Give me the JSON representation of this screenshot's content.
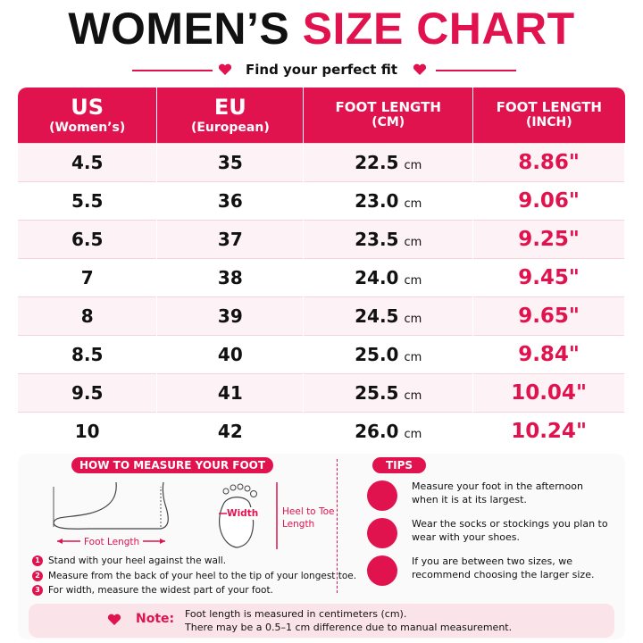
{
  "header": {
    "title_black": "WOMEN’S",
    "title_pink": "SIZE CHART",
    "subtitle": "Find your perfect fit"
  },
  "table": {
    "columns": [
      {
        "title": "US",
        "sub": "(Women’s)"
      },
      {
        "title": "EU",
        "sub": "(European)"
      },
      {
        "title": "FOOT LENGTH",
        "sub": "(CM)"
      },
      {
        "title": "FOOT LENGTH",
        "sub": "(INCH)"
      }
    ],
    "unit": "cm",
    "rows": [
      [
        "4.5",
        "35",
        "22.5",
        "8.86\""
      ],
      [
        "5.5",
        "36",
        "23.0",
        "9.06\""
      ],
      [
        "6.5",
        "37",
        "23.5",
        "9.25\""
      ],
      [
        "7",
        "38",
        "24.0",
        "9.45\""
      ],
      [
        "8",
        "39",
        "24.5",
        "9.65\""
      ],
      [
        "8.5",
        "40",
        "25.0",
        "9.84\""
      ],
      [
        "9.5",
        "41",
        "25.5",
        "10.04\""
      ],
      [
        "10",
        "42",
        "26.0",
        "10.24\""
      ]
    ]
  },
  "measure": {
    "title": "HOW TO MEASURE YOUR FOOT",
    "foot_length": "Foot Length",
    "width": "Width",
    "heel_to_toe": "Heel to Toe Length",
    "steps": [
      {
        "n": "1",
        "text": "Stand with your heel against the wall."
      },
      {
        "n": "2",
        "text": "Measure from the back of your heel to the tip of your longest toe."
      },
      {
        "n": "3",
        "text": "For width, measure the widest part of your foot."
      }
    ]
  },
  "tips": {
    "title": "TIPS",
    "items": [
      "Measure your foot in the afternoon when it is at its largest.",
      "Wear the socks or stockings you plan to wear with your shoes.",
      "If you are between two sizes, we recommend choosing the larger size."
    ]
  },
  "note": {
    "label": "Note:",
    "lines": [
      "Foot length is measured in centimeters (cm).",
      "There may be a 0.5–1 cm difference due to manual measurement."
    ]
  }
}
